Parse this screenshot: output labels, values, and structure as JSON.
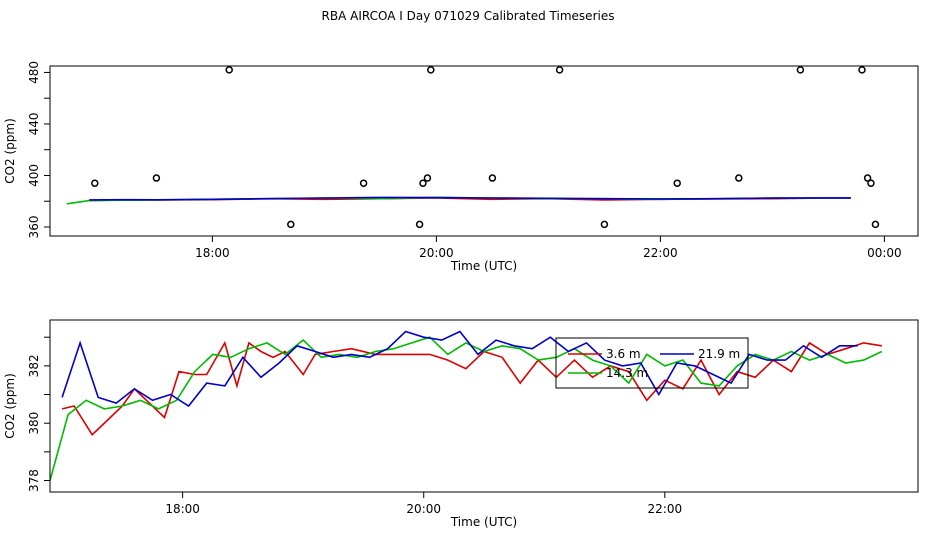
{
  "figure": {
    "title": "RBA AIRCOA I  Day 071029  Calibrated Timeseries"
  },
  "colors": {
    "red": "#dd0000",
    "green": "#00bb00",
    "blue": "#0000cc",
    "points": "#000000",
    "axes": "#000000"
  },
  "chart_data": [
    {
      "type": "line",
      "xlabel": "Time (UTC)",
      "ylabel": "CO2 (ppm)",
      "xlim": [
        16.55,
        24.3
      ],
      "ylim": [
        353,
        485
      ],
      "x_ticks": [
        {
          "v": 18,
          "label": "18:00"
        },
        {
          "v": 20,
          "label": "20:00"
        },
        {
          "v": 22,
          "label": "22:00"
        },
        {
          "v": 24,
          "label": "00:00"
        }
      ],
      "y_ticks": [
        {
          "v": 360,
          "label": "360"
        },
        {
          "v": 380,
          "label": ""
        },
        {
          "v": 400,
          "label": "400"
        },
        {
          "v": 420,
          "label": ""
        },
        {
          "v": 440,
          "label": "440"
        },
        {
          "v": 460,
          "label": ""
        },
        {
          "v": 480,
          "label": "480"
        }
      ],
      "points": [
        [
          16.95,
          394
        ],
        [
          17.5,
          398
        ],
        [
          18.15,
          482
        ],
        [
          18.7,
          362
        ],
        [
          19.35,
          394
        ],
        [
          19.85,
          362
        ],
        [
          19.88,
          394
        ],
        [
          19.92,
          398
        ],
        [
          19.95,
          482
        ],
        [
          20.5,
          398
        ],
        [
          21.1,
          482
        ],
        [
          21.5,
          362
        ],
        [
          22.15,
          394
        ],
        [
          22.7,
          398
        ],
        [
          23.25,
          482
        ],
        [
          23.8,
          482
        ],
        [
          23.85,
          398
        ],
        [
          23.88,
          394
        ],
        [
          23.92,
          362
        ]
      ],
      "series": [
        {
          "color": "red",
          "x": [
            16.9,
            17.2,
            17.5,
            18.0,
            18.5,
            19.0,
            19.5,
            20.0,
            20.5,
            21.0,
            21.5,
            22.0,
            22.5,
            23.0,
            23.5,
            23.7
          ],
          "y": [
            380.5,
            381,
            381,
            381.2,
            382,
            381.5,
            382,
            382.5,
            381.5,
            382,
            381,
            381.5,
            381.8,
            382,
            382.5,
            382.5
          ]
        },
        {
          "color": "green",
          "x": [
            16.7,
            16.9,
            17.2,
            17.5,
            18.0,
            18.5,
            19.0,
            19.5,
            20.0,
            20.5,
            21.0,
            21.5,
            22.0,
            22.5,
            23.0,
            23.5,
            23.7
          ],
          "y": [
            378,
            380.5,
            380.8,
            381,
            381.5,
            382,
            382.5,
            382,
            383,
            382.5,
            382,
            382,
            381.5,
            382,
            382.5,
            382.5,
            382.5
          ]
        },
        {
          "color": "blue",
          "x": [
            16.9,
            17.2,
            17.5,
            18.0,
            18.5,
            19.0,
            19.5,
            20.0,
            20.5,
            21.0,
            21.5,
            22.0,
            22.5,
            23.0,
            23.5,
            23.7
          ],
          "y": [
            381,
            381.2,
            381.1,
            381.5,
            382,
            382.5,
            383,
            382.8,
            382.5,
            382.3,
            382,
            381.8,
            382,
            382.4,
            382.6,
            382.6
          ]
        }
      ]
    },
    {
      "type": "line",
      "xlabel": "Time (UTC)",
      "ylabel": "CO2 (ppm)",
      "xlim": [
        16.9,
        24.1
      ],
      "ylim": [
        377.6,
        383.6
      ],
      "x_ticks": [
        {
          "v": 18,
          "label": "18:00"
        },
        {
          "v": 20,
          "label": "20:00"
        },
        {
          "v": 22,
          "label": "22:00"
        }
      ],
      "y_ticks": [
        {
          "v": 378,
          "label": "378"
        },
        {
          "v": 379,
          "label": ""
        },
        {
          "v": 380,
          "label": "380"
        },
        {
          "v": 381,
          "label": ""
        },
        {
          "v": 382,
          "label": "382"
        },
        {
          "v": 383,
          "label": ""
        }
      ],
      "series": [
        {
          "name": "3.6 m",
          "color": "red",
          "x": [
            17.0,
            17.1,
            17.25,
            17.4,
            17.5,
            17.6,
            17.7,
            17.85,
            17.97,
            18.1,
            18.2,
            18.35,
            18.45,
            18.55,
            18.65,
            18.75,
            18.85,
            19.0,
            19.1,
            19.25,
            19.4,
            19.6,
            19.75,
            19.9,
            20.05,
            20.2,
            20.35,
            20.5,
            20.65,
            20.8,
            20.95,
            21.1,
            21.25,
            21.4,
            21.55,
            21.7,
            21.85,
            22.0,
            22.15,
            22.3,
            22.45,
            22.6,
            22.75,
            22.9,
            23.05,
            23.2,
            23.35,
            23.5,
            23.65,
            23.8
          ],
          "y": [
            380.5,
            380.6,
            379.6,
            380.2,
            380.6,
            381.2,
            380.8,
            380.2,
            381.8,
            381.7,
            381.7,
            382.8,
            381.3,
            382.8,
            382.5,
            382.3,
            382.5,
            381.7,
            382.4,
            382.5,
            382.6,
            382.4,
            382.4,
            382.4,
            382.4,
            382.2,
            381.9,
            382.5,
            382.3,
            381.4,
            382.2,
            381.6,
            382.2,
            381.6,
            382.0,
            381.8,
            380.8,
            381.5,
            381.2,
            382.2,
            381.0,
            381.8,
            381.6,
            382.2,
            381.8,
            382.8,
            382.4,
            382.6,
            382.8,
            382.7
          ]
        },
        {
          "name": "14.3 m",
          "color": "green",
          "x": [
            16.9,
            17.05,
            17.2,
            17.35,
            17.5,
            17.65,
            17.8,
            17.95,
            18.1,
            18.25,
            18.4,
            18.55,
            18.7,
            18.85,
            19.0,
            19.15,
            19.3,
            19.45,
            19.6,
            19.75,
            19.9,
            20.05,
            20.2,
            20.35,
            20.5,
            20.65,
            20.8,
            20.95,
            21.1,
            21.25,
            21.4,
            21.55,
            21.7,
            21.85,
            22.0,
            22.15,
            22.3,
            22.45,
            22.6,
            22.75,
            22.9,
            23.05,
            23.2,
            23.35,
            23.5,
            23.65,
            23.8
          ],
          "y": [
            378.0,
            380.3,
            380.8,
            380.5,
            380.6,
            380.8,
            380.5,
            380.8,
            381.8,
            382.4,
            382.3,
            382.6,
            382.8,
            382.4,
            382.9,
            382.3,
            382.4,
            382.3,
            382.5,
            382.6,
            382.8,
            383.0,
            382.4,
            382.8,
            382.5,
            382.7,
            382.6,
            382.2,
            382.3,
            382.6,
            382.2,
            382.0,
            381.4,
            382.4,
            382.0,
            382.2,
            381.4,
            381.3,
            382.0,
            382.4,
            382.2,
            382.5,
            382.2,
            382.4,
            382.1,
            382.2,
            382.5
          ]
        },
        {
          "name": "21.9 m",
          "color": "blue",
          "x": [
            17.0,
            17.15,
            17.3,
            17.45,
            17.6,
            17.75,
            17.9,
            18.05,
            18.2,
            18.35,
            18.5,
            18.65,
            18.8,
            18.95,
            19.1,
            19.25,
            19.4,
            19.55,
            19.7,
            19.85,
            20.0,
            20.15,
            20.3,
            20.45,
            20.6,
            20.75,
            20.9,
            21.05,
            21.2,
            21.35,
            21.5,
            21.65,
            21.8,
            21.95,
            22.1,
            22.25,
            22.4,
            22.55,
            22.7,
            22.85,
            23.0,
            23.15,
            23.3,
            23.45,
            23.6
          ],
          "y": [
            380.9,
            382.8,
            380.9,
            380.7,
            381.2,
            380.8,
            381.0,
            380.6,
            381.4,
            381.3,
            382.3,
            381.6,
            382.1,
            382.7,
            382.5,
            382.3,
            382.4,
            382.3,
            382.6,
            383.2,
            383.0,
            382.9,
            383.2,
            382.4,
            382.9,
            382.7,
            382.6,
            383.0,
            382.5,
            382.8,
            382.2,
            382.0,
            382.1,
            381.0,
            382.1,
            382.0,
            381.7,
            381.4,
            382.4,
            382.2,
            382.2,
            382.7,
            382.3,
            382.7,
            382.7
          ]
        }
      ],
      "legend": {
        "placement": "top-center"
      }
    }
  ]
}
